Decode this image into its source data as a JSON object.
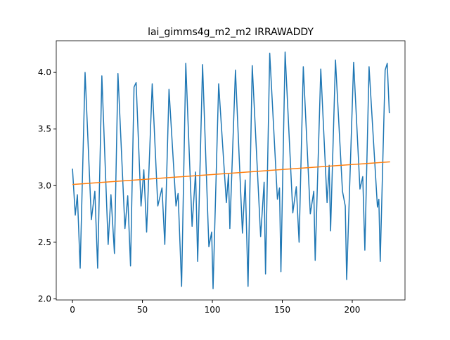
{
  "chart_data": {
    "type": "line",
    "title": "lai_gimms4g_m2_m2 IRRAWADDY",
    "series": [
      {
        "color": "#1f77b4",
        "x": [
          0,
          2,
          3.5,
          5.5,
          9,
          13.5,
          16,
          18,
          21,
          25.5,
          27.5,
          30,
          32.5,
          37.5,
          39.5,
          41.5,
          44,
          45.5,
          49,
          51,
          53,
          57,
          61,
          64,
          66,
          69,
          74,
          75.5,
          78,
          81,
          85.5,
          88,
          89.5,
          93,
          97.5,
          99.5,
          100.5,
          104.5,
          110,
          111.5,
          112.5,
          116.5,
          121.5,
          123.5,
          125.5,
          128.5,
          134.5,
          137,
          138,
          141,
          146.5,
          148,
          149,
          152,
          157.5,
          160,
          162,
          165,
          170,
          172.5,
          173.5,
          177.5,
          182,
          183.5,
          184.5,
          188,
          193,
          195,
          196,
          201,
          205.5,
          207.5,
          209,
          212,
          218,
          219,
          220,
          223.5,
          225,
          226.5
        ],
        "values": [
          3.15,
          2.74,
          2.92,
          2.27,
          4.0,
          2.7,
          2.95,
          2.27,
          3.97,
          2.48,
          2.92,
          2.4,
          3.99,
          2.62,
          2.91,
          2.29,
          3.87,
          3.91,
          2.82,
          3.14,
          2.59,
          3.9,
          2.82,
          2.98,
          2.48,
          3.85,
          2.82,
          2.93,
          2.11,
          4.08,
          2.64,
          3.12,
          2.33,
          4.07,
          2.46,
          2.59,
          2.09,
          3.9,
          2.85,
          3.1,
          2.62,
          4.02,
          2.58,
          3.05,
          2.11,
          4.06,
          2.55,
          3.03,
          2.22,
          4.17,
          2.88,
          2.98,
          2.24,
          4.18,
          2.76,
          2.99,
          2.5,
          4.05,
          2.75,
          2.95,
          2.34,
          4.03,
          2.85,
          3.18,
          2.6,
          4.11,
          2.95,
          2.82,
          2.17,
          4.09,
          2.97,
          3.08,
          2.43,
          4.05,
          2.81,
          2.88,
          2.33,
          4.02,
          4.08,
          3.64
        ]
      },
      {
        "color": "#ff7f0e",
        "x": [
          0,
          227
        ],
        "values": [
          3.01,
          3.21
        ]
      }
    ],
    "xlim": [
      -11.6,
      237.7
    ],
    "ylim": [
      1.99,
      4.28
    ],
    "xticks": [
      0,
      50,
      100,
      150,
      200
    ],
    "yticks": [
      {
        "value": 2.0,
        "label": "2.0"
      },
      {
        "value": 2.5,
        "label": "2.5"
      },
      {
        "value": 3.0,
        "label": "3.0"
      },
      {
        "value": 3.5,
        "label": "3.5"
      },
      {
        "value": 4.0,
        "label": "4.0"
      }
    ]
  }
}
